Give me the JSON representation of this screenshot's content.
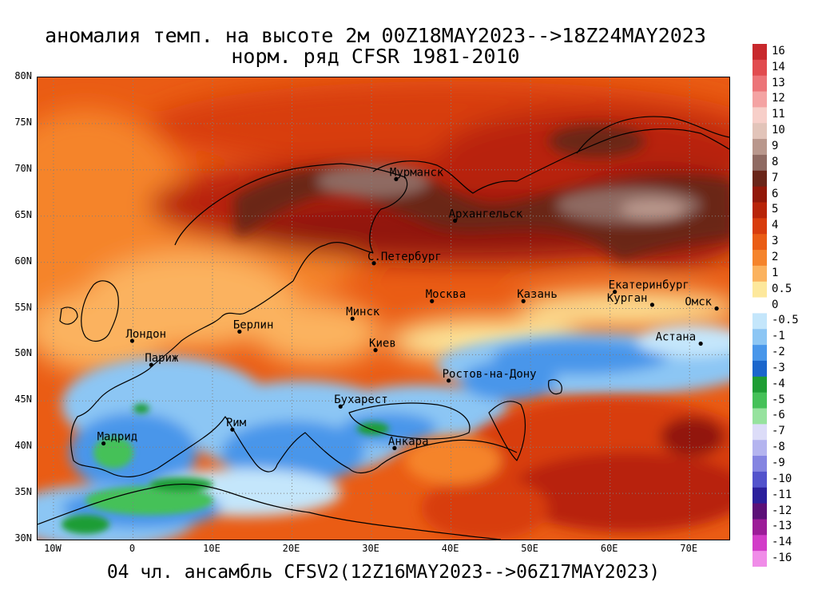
{
  "title": {
    "line1": "аномалия темп. на высоте 2м 00Z18MAY2023-->18Z24MAY2023",
    "line2": "норм. ряд CFSR 1981-2010"
  },
  "footer": "04 чл. ансамбль CFSV2(12Z16MAY2023-->06Z17MAY2023)",
  "lat_labels": [
    "80N",
    "75N",
    "70N",
    "65N",
    "60N",
    "55N",
    "50N",
    "45N",
    "40N",
    "35N",
    "30N"
  ],
  "lon_labels": [
    "10W",
    "0",
    "10E",
    "20E",
    "30E",
    "40E",
    "50E",
    "60E",
    "70E"
  ],
  "cities": [
    {
      "name": "Мурманск",
      "lon": 33.1,
      "lat": 69.0
    },
    {
      "name": "Архангельск",
      "lon": 40.5,
      "lat": 64.5
    },
    {
      "name": "С.Петербург",
      "lon": 30.3,
      "lat": 59.9
    },
    {
      "name": "Москва",
      "lon": 37.6,
      "lat": 55.8
    },
    {
      "name": "Казань",
      "lon": 49.1,
      "lat": 55.8
    },
    {
      "name": "Екатеринбург",
      "lon": 60.6,
      "lat": 56.8
    },
    {
      "name": "Курган",
      "lon": 65.3,
      "lat": 55.4
    },
    {
      "name": "Омск",
      "lon": 73.4,
      "lat": 55.0
    },
    {
      "name": "Астана",
      "lon": 71.4,
      "lat": 51.2
    },
    {
      "name": "Минск",
      "lon": 27.6,
      "lat": 53.9
    },
    {
      "name": "Киев",
      "lon": 30.5,
      "lat": 50.5
    },
    {
      "name": "Берлин",
      "lon": 13.4,
      "lat": 52.5
    },
    {
      "name": "Лондон",
      "lon": -0.1,
      "lat": 51.5
    },
    {
      "name": "Париж",
      "lon": 2.3,
      "lat": 48.9
    },
    {
      "name": "Ростов-на-Дону",
      "lon": 39.7,
      "lat": 47.2
    },
    {
      "name": "Бухарест",
      "lon": 26.1,
      "lat": 44.4
    },
    {
      "name": "Рим",
      "lon": 12.5,
      "lat": 41.9
    },
    {
      "name": "Мадрид",
      "lon": -3.7,
      "lat": 40.4
    },
    {
      "name": "Анкара",
      "lon": 32.9,
      "lat": 39.9
    }
  ],
  "colorbar": [
    {
      "label": "16",
      "color": "#c8282c"
    },
    {
      "label": "14",
      "color": "#e14b4f"
    },
    {
      "label": "13",
      "color": "#ec7478"
    },
    {
      "label": "12",
      "color": "#f4a3a3"
    },
    {
      "label": "11",
      "color": "#f7cfc9"
    },
    {
      "label": "10",
      "color": "#e2c4b9"
    },
    {
      "label": "9",
      "color": "#b9978c"
    },
    {
      "label": "8",
      "color": "#8f6a62"
    },
    {
      "label": "7",
      "color": "#6a2518"
    },
    {
      "label": "6",
      "color": "#921808"
    },
    {
      "label": "5",
      "color": "#b82408"
    },
    {
      "label": "4",
      "color": "#d83c0c"
    },
    {
      "label": "3",
      "color": "#ea5c14"
    },
    {
      "label": "2",
      "color": "#f5842c"
    },
    {
      "label": "1",
      "color": "#fbb25e"
    },
    {
      "label": "0.5",
      "color": "#fde89c"
    },
    {
      "label": "0",
      "color": "#ffffff"
    },
    {
      "label": "-0.5",
      "color": "#c4e6fb"
    },
    {
      "label": "-1",
      "color": "#8cc6f4"
    },
    {
      "label": "-2",
      "color": "#4896ea"
    },
    {
      "label": "-3",
      "color": "#1b66cc"
    },
    {
      "label": "-4",
      "color": "#1e9d34"
    },
    {
      "label": "-5",
      "color": "#45c158"
    },
    {
      "label": "-6",
      "color": "#96e29e"
    },
    {
      "label": "-7",
      "color": "#dcdcf8"
    },
    {
      "label": "-8",
      "color": "#b4b4ef"
    },
    {
      "label": "-9",
      "color": "#8484e1"
    },
    {
      "label": "-10",
      "color": "#5252cc"
    },
    {
      "label": "-11",
      "color": "#2b1f9c"
    },
    {
      "label": "-12",
      "color": "#5c1078"
    },
    {
      "label": "-13",
      "color": "#9c1c98"
    },
    {
      "label": "-14",
      "color": "#d23cc8"
    },
    {
      "label": "-16",
      "color": "#f08ce8"
    }
  ],
  "colors": {
    "border": "#000000",
    "contour": "#999999",
    "gridline": "#808080"
  }
}
